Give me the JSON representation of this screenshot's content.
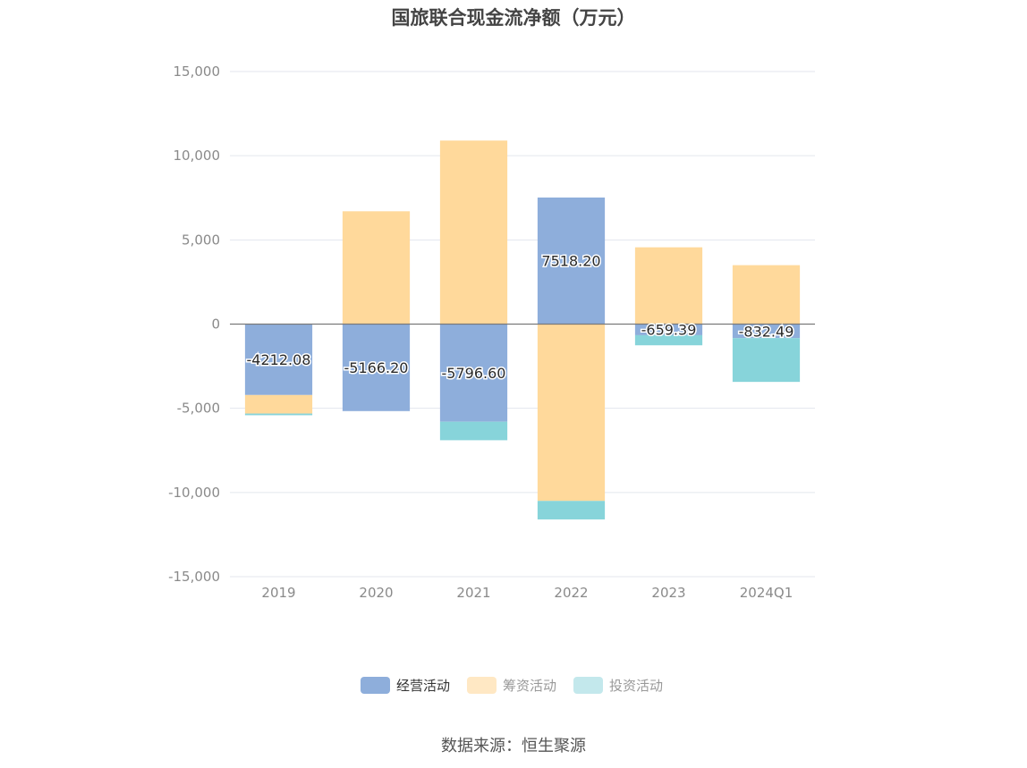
{
  "chart_data": {
    "type": "bar",
    "stacked": true,
    "title": "国旅联合现金流净额（万元）",
    "categories": [
      "2019",
      "2020",
      "2021",
      "2022",
      "2023",
      "2024Q1"
    ],
    "series": [
      {
        "name": "经营活动",
        "color": "#8eaedb",
        "values": [
          -4212.08,
          -5166.2,
          -5796.6,
          7518.2,
          -659.39,
          -832.49
        ],
        "labels": [
          "-4212.08",
          "-5166.20",
          "-5796.60",
          "7518.20",
          "-659.39",
          "-832.49"
        ]
      },
      {
        "name": "筹资活动",
        "color": "#ffd99b",
        "values": [
          -1100,
          6700,
          10900,
          -10500,
          4560,
          3500
        ]
      },
      {
        "name": "投资活动",
        "color": "#87d4da",
        "values": [
          -100,
          0,
          -1100,
          -1100,
          -600,
          -2600
        ]
      }
    ],
    "ylim": [
      -15000,
      15000
    ],
    "yticks": [
      15000,
      10000,
      5000,
      0,
      -5000,
      -10000,
      -15000
    ],
    "ytick_labels": [
      "15,000",
      "10,000",
      "5,000",
      "0",
      "-5,000",
      "-10,000",
      "-15,000"
    ],
    "grid": true,
    "legend_position": "bottom"
  },
  "legend_colors": [
    "#8eaedb",
    "#ffe8c4",
    "#c3e8ec"
  ],
  "source": "数据来源：恒生聚源"
}
